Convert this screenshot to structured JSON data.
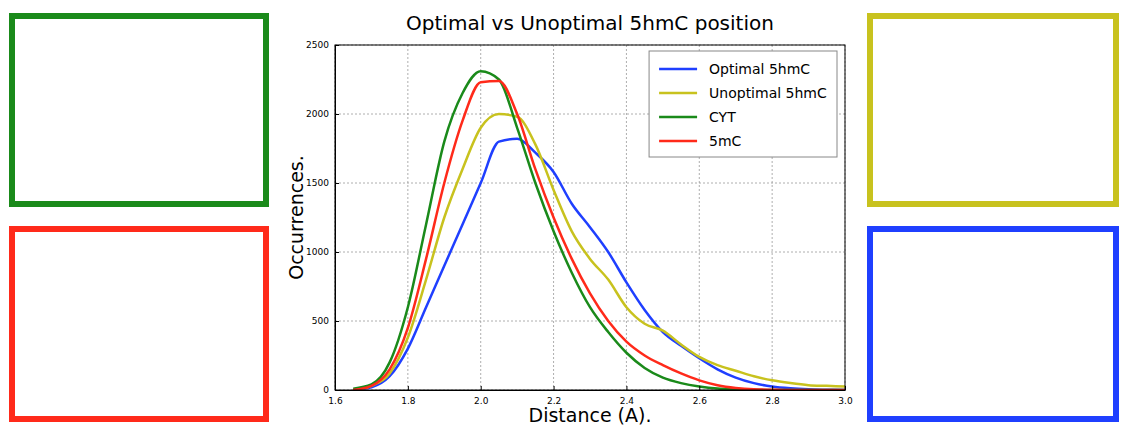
{
  "chart_data": {
    "type": "line",
    "title": "Optimal vs Unoptimal 5hmC position",
    "x_label": "Distance (A).",
    "y_label": "Occurrences.",
    "x": [
      1.65,
      1.7,
      1.75,
      1.8,
      1.85,
      1.9,
      1.95,
      2.0,
      2.05,
      2.1,
      2.15,
      2.2,
      2.25,
      2.3,
      2.35,
      2.4,
      2.45,
      2.5,
      2.55,
      2.6,
      2.65,
      2.7,
      2.75,
      2.8,
      2.85,
      2.9,
      2.95,
      3.0
    ],
    "series": [
      {
        "name": "Optimal 5hmC",
        "color": "#1f3fff",
        "values": [
          0,
          20,
          100,
          300,
          600,
          900,
          1200,
          1500,
          1800,
          1820,
          1720,
          1580,
          1350,
          1180,
          1000,
          780,
          580,
          420,
          320,
          230,
          150,
          90,
          50,
          25,
          12,
          5,
          2,
          0
        ]
      },
      {
        "name": "Unoptimal 5hmC",
        "color": "#c8c21e",
        "values": [
          0,
          30,
          120,
          380,
          800,
          1250,
          1600,
          1900,
          2000,
          1980,
          1780,
          1450,
          1150,
          950,
          800,
          600,
          480,
          430,
          330,
          240,
          180,
          140,
          100,
          70,
          50,
          35,
          30,
          25
        ]
      },
      {
        "name": "CYT",
        "color": "#1a8a1a",
        "values": [
          10,
          40,
          200,
          600,
          1200,
          1800,
          2150,
          2310,
          2250,
          1900,
          1500,
          1150,
          850,
          600,
          420,
          270,
          160,
          90,
          50,
          25,
          10,
          5,
          2,
          0,
          0,
          0,
          0,
          0
        ]
      },
      {
        "name": "5mC",
        "color": "#ff2a1a",
        "values": [
          0,
          30,
          150,
          450,
          950,
          1500,
          1950,
          2230,
          2240,
          2000,
          1600,
          1250,
          950,
          700,
          500,
          350,
          250,
          180,
          120,
          70,
          35,
          15,
          5,
          2,
          0,
          0,
          0,
          0
        ]
      }
    ],
    "xlim": [
      1.6,
      3.0
    ],
    "xticks": [
      1.6,
      1.8,
      {
        "value": 2,
        "label": "2.0"
      },
      2.2,
      2.4,
      2.6,
      2.8,
      {
        "value": 3,
        "label": "3.0"
      }
    ],
    "ylim": [
      0,
      2500
    ],
    "yticks": [
      0,
      500,
      1000,
      1500,
      2000,
      2500
    ],
    "grid": true,
    "legend": "upper right"
  }
}
